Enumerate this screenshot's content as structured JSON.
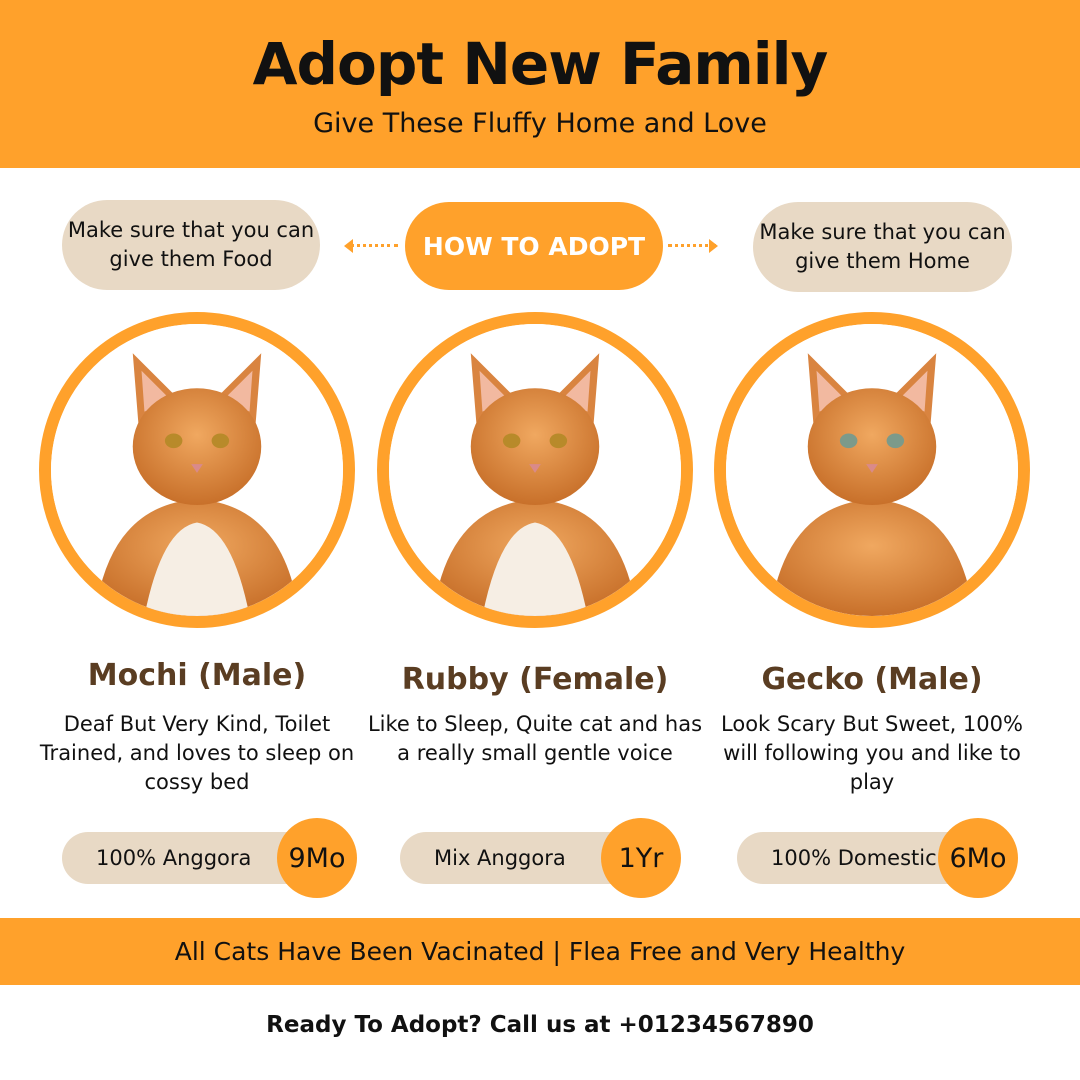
{
  "header": {
    "title": "Adopt New Family",
    "subtitle": "Give These Fluffy Home and Love"
  },
  "steps": {
    "left": "Make sure that you can give them Food",
    "center": "HOW TO ADOPT",
    "right": "Make sure that you can give them Home"
  },
  "colors": {
    "accent": "#FFA12B",
    "pill": "#E8D9C5",
    "name": "#5A3D22"
  },
  "cats": [
    {
      "photo": "orange-white long-haired cat",
      "name": "Mochi (Male)",
      "description": "Deaf But Very Kind, Toilet Trained, and loves to sleep on cossy bed",
      "breed": "100% Anggora",
      "age": "9Mo"
    },
    {
      "photo": "orange fluffy cat",
      "name": "Rubby (Female)",
      "description": "Like to Sleep, Quite cat and has a really small gentle voice",
      "breed": "Mix Anggora",
      "age": "1Yr"
    },
    {
      "photo": "orange tabby kitten",
      "name": "Gecko (Male)",
      "description": "Look Scary But Sweet, 100% will following you and like to play",
      "breed": "100% Domestic",
      "age": "6Mo"
    }
  ],
  "footer": {
    "band": "All Cats Have Been Vacinated | Flea Free and Very Healthy",
    "cta": "Ready To Adopt? Call us at +01234567890"
  }
}
